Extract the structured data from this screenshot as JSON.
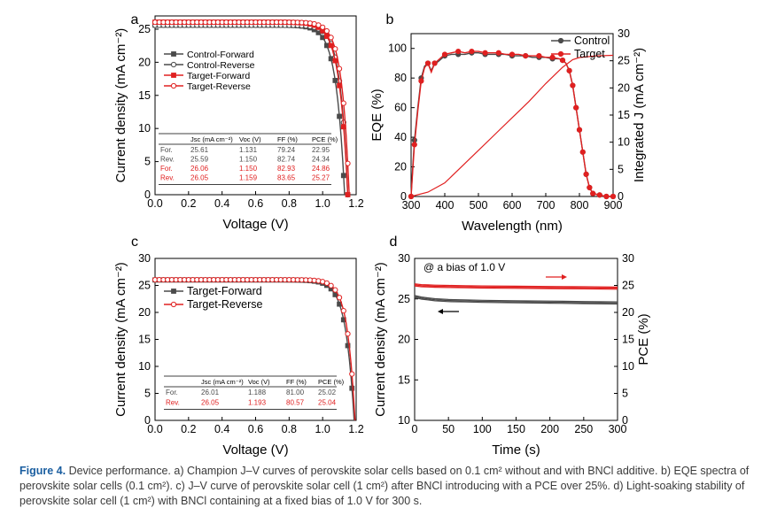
{
  "figure": {
    "caption_label": "Figure 4.",
    "caption_text": "Device performance. a) Champion J–V curves of perovskite solar cells based on 0.1 cm² without and with BNCl additive. b) EQE spectra of perovskite solar cells (0.1 cm²). c) J–V curve of perovskite solar cell (1 cm²) after BNCl introducing with a PCE over 25%. d) Light-soaking stability of perovskite solar cell (1 cm²) with BNCl containing at a fixed bias of 1.0 V for 300 s."
  },
  "colors": {
    "control": "#4a4a4a",
    "target": "#e02020",
    "axis": "#000000"
  },
  "chart_data": [
    {
      "panel": "a",
      "type": "line",
      "xlabel": "Voltage (V)",
      "ylabel": "Current density (mA cm⁻²)",
      "xlim": [
        0.0,
        1.2
      ],
      "ylim": [
        0,
        27
      ],
      "xticks": [
        "0.0",
        "0.2",
        "0.4",
        "0.6",
        "0.8",
        "1.0",
        "1.2"
      ],
      "yticks": [
        "0",
        "5",
        "10",
        "15",
        "20",
        "25"
      ],
      "series": [
        {
          "name": "Control-Forward",
          "color": "control",
          "marker": "square",
          "jsc": 25.61,
          "voc": 1.131
        },
        {
          "name": "Control-Reverse",
          "color": "control",
          "marker": "circle",
          "jsc": 25.59,
          "voc": 1.15
        },
        {
          "name": "Target-Forward",
          "color": "target",
          "marker": "square",
          "jsc": 26.06,
          "voc": 1.15
        },
        {
          "name": "Target-Reverse",
          "color": "target",
          "marker": "circle",
          "jsc": 26.05,
          "voc": 1.159
        }
      ],
      "legend_position": "top-left",
      "table": {
        "headers": [
          "",
          "Jsc (mA cm⁻²)",
          "Voc (V)",
          "FF (%)",
          "PCE (%)"
        ],
        "rows": [
          {
            "cells": [
              "For.",
              "25.61",
              "1.131",
              "79.24",
              "22.95"
            ],
            "color": "control"
          },
          {
            "cells": [
              "Rev.",
              "25.59",
              "1.150",
              "82.74",
              "24.34"
            ],
            "color": "control"
          },
          {
            "cells": [
              "For.",
              "26.06",
              "1.150",
              "82.93",
              "24.86"
            ],
            "color": "target"
          },
          {
            "cells": [
              "Rev.",
              "26.05",
              "1.159",
              "83.65",
              "25.27"
            ],
            "color": "target"
          }
        ]
      }
    },
    {
      "panel": "b",
      "type": "line",
      "xlabel": "Wavelength (nm)",
      "ylabel": "EQE (%)",
      "y2label": "Integrated J (mA cm⁻²)",
      "xlim": [
        300,
        900
      ],
      "ylim": [
        0,
        110
      ],
      "y2lim": [
        0,
        30
      ],
      "xticks": [
        "300",
        "400",
        "500",
        "600",
        "700",
        "800",
        "900"
      ],
      "yticks": [
        "0",
        "20",
        "40",
        "60",
        "80",
        "100"
      ],
      "y2ticks": [
        "0",
        "5",
        "10",
        "15",
        "20",
        "25",
        "30"
      ],
      "eqe_x": [
        300,
        305,
        310,
        320,
        330,
        340,
        350,
        360,
        370,
        380,
        400,
        420,
        440,
        460,
        480,
        500,
        520,
        540,
        560,
        580,
        600,
        620,
        640,
        660,
        680,
        700,
        720,
        740,
        750,
        760,
        770,
        780,
        790,
        800,
        810,
        820,
        830,
        840,
        860,
        880,
        900
      ],
      "series": [
        {
          "name": "Control",
          "color": "control",
          "marker": "circle",
          "eqe": [
            0,
            20,
            38,
            60,
            80,
            88,
            90,
            85,
            90,
            91,
            95,
            96,
            96,
            96,
            97,
            97,
            96,
            96,
            96,
            96,
            95,
            95,
            95,
            94,
            94,
            94,
            93,
            93,
            92,
            90,
            85,
            75,
            60,
            45,
            30,
            15,
            6,
            2,
            1,
            0,
            0
          ]
        },
        {
          "name": "Target",
          "color": "target",
          "marker": "circle",
          "eqe": [
            0,
            18,
            35,
            58,
            78,
            87,
            90,
            84,
            90,
            92,
            96,
            97,
            98,
            97,
            98,
            98,
            97,
            97,
            97,
            96,
            96,
            96,
            95,
            95,
            95,
            94,
            94,
            93,
            92,
            90,
            85,
            75,
            60,
            45,
            30,
            15,
            6,
            2,
            1,
            0,
            0
          ],
          "integrated_x": [
            300,
            350,
            400,
            450,
            500,
            550,
            600,
            650,
            700,
            750,
            780,
            800,
            850,
            900
          ],
          "integrated_j": [
            0,
            0.8,
            2.5,
            5.5,
            8.5,
            11.5,
            14.5,
            17.5,
            20.8,
            23.8,
            25.2,
            25.6,
            25.9,
            26.0
          ]
        }
      ],
      "legend_position": "top-right"
    },
    {
      "panel": "c",
      "type": "line",
      "xlabel": "Voltage (V)",
      "ylabel": "Current density (mA cm⁻²)",
      "xlim": [
        0.0,
        1.2
      ],
      "ylim": [
        0,
        30
      ],
      "xticks": [
        "0.0",
        "0.2",
        "0.4",
        "0.6",
        "0.8",
        "1.0",
        "1.2"
      ],
      "yticks": [
        "0",
        "5",
        "10",
        "15",
        "20",
        "25",
        "30"
      ],
      "series": [
        {
          "name": "Target-Forward",
          "color": "control",
          "marker": "square",
          "jsc": 26.01,
          "voc": 1.188
        },
        {
          "name": "Target-Reverse",
          "color": "target",
          "marker": "circle",
          "jsc": 26.05,
          "voc": 1.193
        }
      ],
      "legend_position": "top-left",
      "table": {
        "headers": [
          "",
          "Jsc (mA cm⁻²)",
          "Voc (V)",
          "FF (%)",
          "PCE (%)"
        ],
        "rows": [
          {
            "cells": [
              "For.",
              "26.01",
              "1.188",
              "81.00",
              "25.02"
            ],
            "color": "control"
          },
          {
            "cells": [
              "Rev.",
              "26.05",
              "1.193",
              "80.57",
              "25.04"
            ],
            "color": "target"
          }
        ]
      }
    },
    {
      "panel": "d",
      "type": "line",
      "xlabel": "Time (s)",
      "ylabel": "Current density (mA cm⁻²)",
      "y2label": "PCE (%)",
      "annotation": "@ a bias of 1.0 V",
      "xlim": [
        0,
        300
      ],
      "ylim": [
        10,
        30
      ],
      "y2lim": [
        0,
        30
      ],
      "xticks": [
        "0",
        "50",
        "100",
        "150",
        "200",
        "250",
        "300"
      ],
      "yticks": [
        "10",
        "15",
        "20",
        "25",
        "30"
      ],
      "y2ticks": [
        "0",
        "5",
        "10",
        "15",
        "20",
        "25",
        "30"
      ],
      "time": [
        0,
        10,
        20,
        30,
        50,
        75,
        100,
        150,
        200,
        250,
        300
      ],
      "series": [
        {
          "name": "Current density",
          "color": "control",
          "axis": "left",
          "values": [
            25.3,
            25.1,
            25.0,
            24.9,
            24.8,
            24.75,
            24.7,
            24.65,
            24.6,
            24.55,
            24.5
          ]
        },
        {
          "name": "PCE",
          "color": "target",
          "axis": "right",
          "values": [
            25.1,
            24.95,
            24.9,
            24.85,
            24.8,
            24.75,
            24.7,
            24.65,
            24.6,
            24.55,
            24.5
          ]
        }
      ]
    }
  ]
}
